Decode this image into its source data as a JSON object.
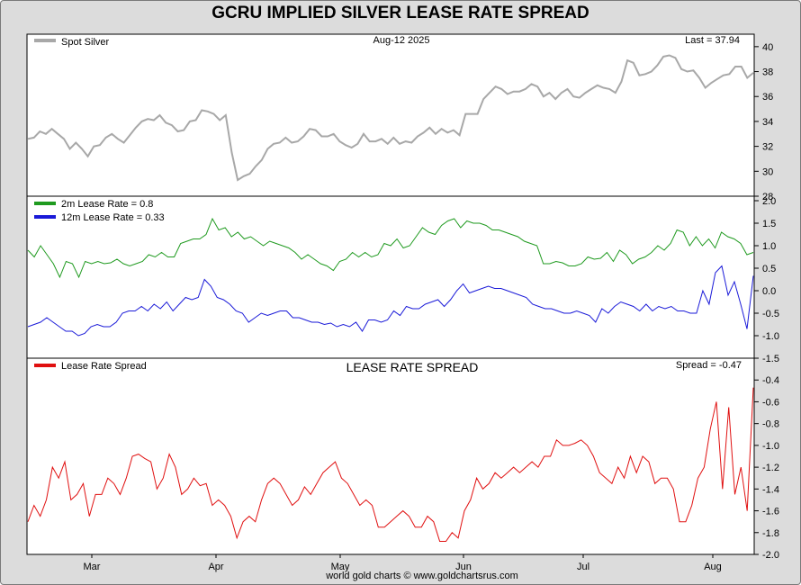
{
  "page": {
    "title": "GCRU IMPLIED SILVER LEASE RATE SPREAD",
    "footer": "world gold charts © www.goldchartsrus.com"
  },
  "chart_data": [
    {
      "type": "line",
      "panel": "spot",
      "date_label": "Aug-12  2025",
      "last_label": "Last = 37.94",
      "legend": [
        {
          "name": "Spot Silver",
          "color": "#a8a8a8"
        }
      ],
      "ylim": [
        28,
        41
      ],
      "yticks": [
        28,
        30,
        32,
        34,
        36,
        38,
        40
      ],
      "series": [
        {
          "name": "Spot Silver",
          "color": "#a8a8a8",
          "values": [
            32.6,
            32.7,
            33.2,
            33.0,
            33.4,
            33.0,
            32.6,
            31.8,
            32.3,
            31.8,
            31.2,
            32.0,
            32.1,
            32.7,
            33.0,
            32.6,
            32.3,
            32.9,
            33.5,
            34.0,
            34.2,
            34.1,
            34.5,
            33.9,
            33.7,
            33.2,
            33.3,
            34.0,
            34.1,
            34.9,
            34.8,
            34.6,
            34.1,
            34.5,
            31.5,
            29.3,
            29.6,
            29.8,
            30.4,
            30.9,
            31.8,
            32.2,
            32.3,
            32.7,
            32.3,
            32.4,
            32.8,
            33.4,
            33.3,
            32.8,
            32.8,
            33.0,
            32.4,
            32.1,
            31.9,
            32.2,
            33.0,
            32.4,
            32.4,
            32.6,
            32.2,
            32.7,
            32.2,
            32.4,
            32.3,
            32.8,
            33.1,
            33.5,
            33.0,
            33.4,
            33.1,
            33.3,
            32.9,
            34.6,
            34.6,
            34.6,
            35.8,
            36.3,
            36.8,
            36.6,
            36.2,
            36.4,
            36.4,
            36.6,
            37.0,
            36.8,
            36.0,
            36.3,
            35.8,
            36.3,
            36.6,
            36.0,
            35.9,
            36.3,
            36.6,
            36.9,
            36.7,
            36.6,
            36.3,
            37.2,
            38.9,
            38.7,
            37.7,
            37.8,
            38.0,
            38.5,
            39.2,
            39.3,
            39.1,
            38.2,
            38.0,
            38.1,
            37.5,
            36.7,
            37.1,
            37.4,
            37.7,
            37.8,
            38.4,
            38.4,
            37.5,
            37.9
          ]
        }
      ]
    },
    {
      "type": "line",
      "panel": "lease",
      "legend": [
        {
          "name": "2m Lease Rate =  0.8",
          "color": "#1f9a1f"
        },
        {
          "name": "12m Lease Rate =  0.33",
          "color": "#1a1ad8"
        }
      ],
      "ylim": [
        -1.5,
        2.1
      ],
      "yticks": [
        -1.5,
        -1.0,
        -0.5,
        0.0,
        0.5,
        1.0,
        1.5,
        2.0
      ],
      "series": [
        {
          "name": "2m Lease Rate",
          "color": "#1f9a1f",
          "values": [
            0.9,
            0.75,
            1.0,
            0.8,
            0.6,
            0.3,
            0.65,
            0.6,
            0.3,
            0.65,
            0.6,
            0.65,
            0.6,
            0.62,
            0.7,
            0.6,
            0.55,
            0.6,
            0.65,
            0.8,
            0.75,
            0.85,
            0.75,
            0.75,
            1.05,
            1.1,
            1.15,
            1.15,
            1.25,
            1.6,
            1.35,
            1.4,
            1.2,
            1.3,
            1.15,
            1.2,
            1.1,
            1.0,
            1.1,
            1.05,
            1.0,
            0.95,
            0.85,
            0.7,
            0.8,
            0.7,
            0.6,
            0.55,
            0.45,
            0.65,
            0.7,
            0.85,
            0.75,
            0.85,
            0.75,
            0.8,
            1.05,
            1.0,
            1.15,
            0.95,
            1.0,
            1.2,
            1.4,
            1.3,
            1.25,
            1.45,
            1.55,
            1.6,
            1.4,
            1.55,
            1.5,
            1.5,
            1.45,
            1.35,
            1.35,
            1.3,
            1.25,
            1.2,
            1.1,
            1.05,
            1.0,
            0.6,
            0.6,
            0.65,
            0.62,
            0.55,
            0.55,
            0.6,
            0.75,
            0.7,
            0.72,
            0.85,
            0.65,
            0.9,
            0.8,
            0.6,
            0.7,
            0.75,
            0.85,
            1.0,
            0.9,
            1.05,
            1.35,
            1.3,
            1.0,
            1.2,
            1.0,
            1.15,
            0.95,
            1.3,
            1.2,
            1.15,
            1.05,
            0.8,
            0.85
          ]
        },
        {
          "name": "12m Lease Rate",
          "color": "#1a1ad8",
          "values": [
            -0.8,
            -0.75,
            -0.7,
            -0.6,
            -0.7,
            -0.8,
            -0.9,
            -0.9,
            -1.0,
            -0.95,
            -0.8,
            -0.75,
            -0.8,
            -0.8,
            -0.7,
            -0.5,
            -0.45,
            -0.45,
            -0.35,
            -0.45,
            -0.3,
            -0.4,
            -0.25,
            -0.45,
            -0.3,
            -0.15,
            -0.2,
            -0.15,
            0.25,
            0.1,
            -0.15,
            -0.2,
            -0.3,
            -0.45,
            -0.5,
            -0.7,
            -0.6,
            -0.5,
            -0.55,
            -0.5,
            -0.45,
            -0.45,
            -0.6,
            -0.6,
            -0.65,
            -0.7,
            -0.7,
            -0.75,
            -0.72,
            -0.8,
            -0.75,
            -0.8,
            -0.7,
            -0.9,
            -0.65,
            -0.65,
            -0.7,
            -0.65,
            -0.45,
            -0.55,
            -0.35,
            -0.4,
            -0.4,
            -0.3,
            -0.25,
            -0.2,
            -0.35,
            -0.2,
            0.0,
            0.15,
            -0.05,
            0.0,
            0.05,
            0.1,
            0.05,
            0.05,
            0.0,
            -0.05,
            -0.1,
            -0.15,
            -0.3,
            -0.35,
            -0.4,
            -0.4,
            -0.45,
            -0.5,
            -0.5,
            -0.45,
            -0.5,
            -0.55,
            -0.7,
            -0.4,
            -0.5,
            -0.35,
            -0.25,
            -0.3,
            -0.35,
            -0.45,
            -0.3,
            -0.45,
            -0.35,
            -0.4,
            -0.35,
            -0.45,
            -0.45,
            -0.5,
            -0.5,
            0.0,
            -0.3,
            0.4,
            0.55,
            -0.1,
            0.2,
            -0.3,
            -0.85,
            0.33
          ]
        }
      ]
    },
    {
      "type": "line",
      "panel": "spread",
      "title": "LEASE RATE SPREAD",
      "last_label": "Spread = -0.47",
      "legend": [
        {
          "name": "Lease Rate Spread",
          "color": "#e01010"
        }
      ],
      "ylim": [
        -2.0,
        -0.2
      ],
      "yticks": [
        -2.0,
        -1.8,
        -1.6,
        -1.4,
        -1.2,
        -1.0,
        -0.8,
        -0.6,
        -0.4
      ],
      "x_tick_labels": [
        "Mar",
        "Apr",
        "May",
        "Jun",
        "Jul",
        "Aug"
      ],
      "series": [
        {
          "name": "Lease Rate Spread",
          "color": "#e01010",
          "values": [
            -1.7,
            -1.55,
            -1.65,
            -1.5,
            -1.2,
            -1.3,
            -1.15,
            -1.5,
            -1.45,
            -1.35,
            -1.65,
            -1.45,
            -1.45,
            -1.3,
            -1.35,
            -1.45,
            -1.3,
            -1.1,
            -1.08,
            -1.12,
            -1.15,
            -1.4,
            -1.3,
            -1.08,
            -1.2,
            -1.45,
            -1.4,
            -1.3,
            -1.37,
            -1.35,
            -1.55,
            -1.5,
            -1.55,
            -1.65,
            -1.85,
            -1.7,
            -1.65,
            -1.7,
            -1.5,
            -1.35,
            -1.3,
            -1.35,
            -1.45,
            -1.55,
            -1.5,
            -1.38,
            -1.45,
            -1.35,
            -1.25,
            -1.2,
            -1.15,
            -1.3,
            -1.35,
            -1.45,
            -1.55,
            -1.5,
            -1.55,
            -1.75,
            -1.75,
            -1.7,
            -1.65,
            -1.6,
            -1.65,
            -1.75,
            -1.75,
            -1.65,
            -1.7,
            -1.88,
            -1.88,
            -1.8,
            -1.85,
            -1.6,
            -1.5,
            -1.3,
            -1.4,
            -1.35,
            -1.25,
            -1.3,
            -1.25,
            -1.2,
            -1.25,
            -1.2,
            -1.15,
            -1.2,
            -1.1,
            -1.1,
            -0.95,
            -1.0,
            -1.0,
            -0.98,
            -0.95,
            -1.0,
            -1.1,
            -1.25,
            -1.3,
            -1.35,
            -1.2,
            -1.3,
            -1.1,
            -1.25,
            -1.1,
            -1.15,
            -1.35,
            -1.3,
            -1.3,
            -1.4,
            -1.7,
            -1.7,
            -1.55,
            -1.3,
            -1.2,
            -0.85,
            -0.6,
            -1.4,
            -0.65,
            -1.45,
            -1.2,
            -1.6,
            -0.47
          ]
        }
      ]
    }
  ]
}
